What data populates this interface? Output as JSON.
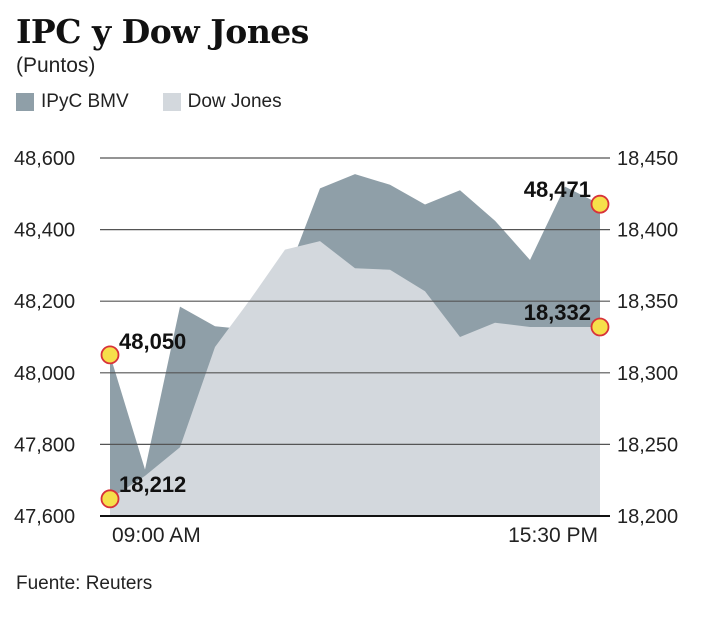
{
  "header": {
    "title": "IPC y Dow Jones",
    "subtitle": "(Puntos)"
  },
  "footer": {
    "source": "Fuente: Reuters"
  },
  "chart_data": {
    "type": "area",
    "title": "IPC y Dow Jones",
    "subtitle": "(Puntos)",
    "x_start_label": "09:00 AM",
    "x_end_label": "15:30 PM",
    "legend_position": "top-left",
    "grid": true,
    "series": [
      {
        "name": "IPyC BMV",
        "axis": "left",
        "color": "#8f9fa8",
        "values": [
          48050,
          47730,
          48185,
          48130,
          48120,
          48260,
          48515,
          48555,
          48525,
          48470,
          48510,
          48425,
          48315,
          48520,
          48471
        ],
        "start_label": "48,050",
        "end_label": "48,471"
      },
      {
        "name": "Dow Jones",
        "axis": "right",
        "color": "#d3d8dd",
        "values": [
          18212,
          18228,
          18248,
          18318,
          18351,
          18386,
          18392,
          18373,
          18372,
          18357,
          18325,
          18335,
          18332,
          18332,
          18332
        ],
        "start_label": "18,212",
        "end_label": "18,332"
      }
    ],
    "left_axis": {
      "ylim": [
        47600,
        48600
      ],
      "ticks": [
        48600,
        48400,
        48200,
        48000,
        47800,
        47600
      ],
      "tick_labels": [
        "48,600",
        "48,400",
        "48,200",
        "48,000",
        "47,800",
        "47,600"
      ]
    },
    "right_axis": {
      "ylim": [
        18200,
        18450
      ],
      "ticks": [
        18450,
        18400,
        18350,
        18300,
        18250,
        18200
      ],
      "tick_labels": [
        "18,450",
        "18,400",
        "18,350",
        "18,300",
        "18,250",
        "18,200"
      ]
    },
    "marker_color": "#f6e04a",
    "marker_stroke": "#d8323a"
  }
}
